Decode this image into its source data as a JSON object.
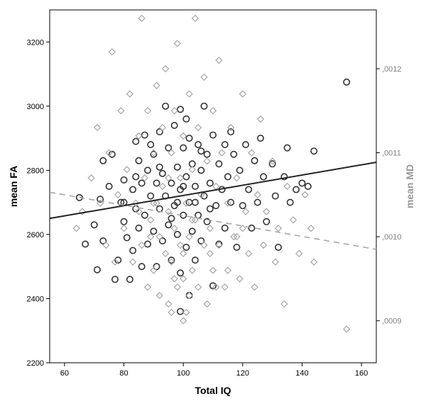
{
  "chart_data": {
    "type": "scatter",
    "title": "",
    "xlabel": "Total IQ",
    "ylabel_left": "mean FA",
    "ylabel_right": "mean MD",
    "xlim": [
      55,
      165
    ],
    "ylim_left": [
      2200,
      3300
    ],
    "ylim_right": [
      0.00085,
      0.00127
    ],
    "x_ticks": [
      "60",
      "80",
      "100",
      "120",
      "140",
      "160"
    ],
    "x_tick_values": [
      60,
      80,
      100,
      120,
      140,
      160
    ],
    "y_left_ticks": [
      "2200",
      "2400",
      "2600",
      "2800",
      "3000",
      "3200"
    ],
    "y_left_tick_values": [
      2200,
      2400,
      2600,
      2800,
      3000,
      3200
    ],
    "y_right_ticks": [
      ",0009",
      ",0010",
      ",0011",
      ",0012"
    ],
    "y_right_tick_values": [
      0.0009,
      0.001,
      0.0011,
      0.0012
    ],
    "grid": false,
    "colors": {
      "fa": "#333333",
      "md": "#a6a6a6",
      "fa_line": "#222222",
      "md_line": "#a6a6a6"
    },
    "series": [
      {
        "key": "fa",
        "marker": "circle",
        "axis": "left",
        "points": [
          [
            65,
            2715
          ],
          [
            67,
            2570
          ],
          [
            70,
            2630
          ],
          [
            71,
            2490
          ],
          [
            72,
            2710
          ],
          [
            73,
            2830
          ],
          [
            73,
            2580
          ],
          [
            75,
            2750
          ],
          [
            76,
            2850
          ],
          [
            77,
            2460
          ],
          [
            78,
            2520
          ],
          [
            79,
            2700
          ],
          [
            80,
            2770
          ],
          [
            80,
            2640
          ],
          [
            81,
            2590
          ],
          [
            82,
            2460
          ],
          [
            83,
            2740
          ],
          [
            83,
            2550
          ],
          [
            84,
            2890
          ],
          [
            84,
            2680
          ],
          [
            85,
            2830
          ],
          [
            85,
            2620
          ],
          [
            86,
            2760
          ],
          [
            86,
            2500
          ],
          [
            87,
            2910
          ],
          [
            87,
            2660
          ],
          [
            88,
            2800
          ],
          [
            88,
            2570
          ],
          [
            89,
            2720
          ],
          [
            90,
            2850
          ],
          [
            90,
            2610
          ],
          [
            91,
            2760
          ],
          [
            91,
            2500
          ],
          [
            92,
            2920
          ],
          [
            92,
            2680
          ],
          [
            93,
            2790
          ],
          [
            93,
            2580
          ],
          [
            94,
            3000
          ],
          [
            94,
            2720
          ],
          [
            95,
            2870
          ],
          [
            95,
            2630
          ],
          [
            96,
            2760
          ],
          [
            96,
            2520
          ],
          [
            97,
            2940
          ],
          [
            97,
            2690
          ],
          [
            98,
            2810
          ],
          [
            98,
            2600
          ],
          [
            99,
            2990
          ],
          [
            99,
            2740
          ],
          [
            99,
            2480
          ],
          [
            100,
            2870
          ],
          [
            100,
            2660
          ],
          [
            101,
            2960
          ],
          [
            101,
            2780
          ],
          [
            101,
            2560
          ],
          [
            102,
            2900
          ],
          [
            102,
            2700
          ],
          [
            103,
            2820
          ],
          [
            103,
            2610
          ],
          [
            104,
            2750
          ],
          [
            104,
            2520
          ],
          [
            105,
            2880
          ],
          [
            105,
            2660
          ],
          [
            106,
            2800
          ],
          [
            106,
            2580
          ],
          [
            107,
            3000
          ],
          [
            107,
            2720
          ],
          [
            108,
            2850
          ],
          [
            108,
            2640
          ],
          [
            109,
            2760
          ],
          [
            110,
            2910
          ],
          [
            110,
            2440
          ],
          [
            111,
            2690
          ],
          [
            112,
            2820
          ],
          [
            112,
            2570
          ],
          [
            113,
            2740
          ],
          [
            114,
            2880
          ],
          [
            114,
            2620
          ],
          [
            115,
            2780
          ],
          [
            116,
            2920
          ],
          [
            116,
            2700
          ],
          [
            117,
            2850
          ],
          [
            118,
            2560
          ],
          [
            119,
            2800
          ],
          [
            120,
            2690
          ],
          [
            121,
            2880
          ],
          [
            122,
            2740
          ],
          [
            123,
            2620
          ],
          [
            124,
            2830
          ],
          [
            125,
            2700
          ],
          [
            126,
            2900
          ],
          [
            127,
            2780
          ],
          [
            128,
            2640
          ],
          [
            130,
            2820
          ],
          [
            131,
            2720
          ],
          [
            132,
            2560
          ],
          [
            134,
            2780
          ],
          [
            135,
            2870
          ],
          [
            136,
            2700
          ],
          [
            138,
            2740
          ],
          [
            140,
            2760
          ],
          [
            142,
            2750
          ],
          [
            144,
            2860
          ],
          [
            155,
            3075
          ],
          [
            99,
            2360
          ],
          [
            102,
            2410
          ],
          [
            96,
            2650
          ],
          [
            98,
            2700
          ],
          [
            100,
            2750
          ],
          [
            104,
            2700
          ],
          [
            106,
            2860
          ],
          [
            109,
            2680
          ],
          [
            92,
            2810
          ],
          [
            89,
            2880
          ],
          [
            84,
            2780
          ],
          [
            80,
            2700
          ]
        ]
      },
      {
        "key": "md",
        "marker": "diamond",
        "axis": "right",
        "points": [
          [
            64,
            0.00101
          ],
          [
            66,
            0.00103
          ],
          [
            69,
            0.00107
          ],
          [
            71,
            0.00113
          ],
          [
            72,
            0.00104
          ],
          [
            74,
            0.00099
          ],
          [
            75,
            0.0011
          ],
          [
            76,
            0.00122
          ],
          [
            77,
            0.00097
          ],
          [
            78,
            0.00105
          ],
          [
            79,
            0.00115
          ],
          [
            80,
            0.00101
          ],
          [
            81,
            0.00108
          ],
          [
            82,
            0.00117
          ],
          [
            83,
            0.00097
          ],
          [
            84,
            0.00104
          ],
          [
            85,
            0.00112
          ],
          [
            86,
            0.00126
          ],
          [
            86,
            0.00099
          ],
          [
            87,
            0.00107
          ],
          [
            88,
            0.00094
          ],
          [
            88,
            0.00115
          ],
          [
            89,
            0.00102
          ],
          [
            90,
            0.0011
          ],
          [
            90,
            0.00096
          ],
          [
            91,
            0.00118
          ],
          [
            91,
            0.00104
          ],
          [
            92,
            0.001
          ],
          [
            92,
            0.00093
          ],
          [
            93,
            0.00113
          ],
          [
            93,
            0.00106
          ],
          [
            94,
            0.00098
          ],
          [
            94,
            0.0012
          ],
          [
            95,
            0.00103
          ],
          [
            95,
            0.00092
          ],
          [
            96,
            0.0011
          ],
          [
            96,
            0.00097
          ],
          [
            97,
            0.00115
          ],
          [
            97,
            0.00101
          ],
          [
            98,
            0.00123
          ],
          [
            98,
            0.00094
          ],
          [
            99,
            0.00107
          ],
          [
            99,
            0.00099
          ],
          [
            100,
            0.00112
          ],
          [
            100,
            0.00095
          ],
          [
            101,
            0.00104
          ],
          [
            101,
            0.00091
          ],
          [
            102,
            0.00117
          ],
          [
            102,
            0.001
          ],
          [
            103,
            0.00108
          ],
          [
            103,
            0.00096
          ],
          [
            104,
            0.00126
          ],
          [
            104,
            0.00102
          ],
          [
            105,
            0.00113
          ],
          [
            105,
            0.00094
          ],
          [
            106,
            0.00105
          ],
          [
            107,
            0.00099
          ],
          [
            107,
            0.00119
          ],
          [
            108,
            0.00092
          ],
          [
            108,
            0.00109
          ],
          [
            109,
            0.00101
          ],
          [
            110,
            0.00115
          ],
          [
            110,
            0.00096
          ],
          [
            111,
            0.00106
          ],
          [
            112,
            0.00121
          ],
          [
            112,
            0.00099
          ],
          [
            113,
            0.0011
          ],
          [
            114,
            0.00094
          ],
          [
            115,
            0.00104
          ],
          [
            116,
            0.00113
          ],
          [
            117,
            0.001
          ],
          [
            118,
            0.00107
          ],
          [
            119,
            0.00095
          ],
          [
            120,
            0.00117
          ],
          [
            121,
            0.00103
          ],
          [
            122,
            0.00098
          ],
          [
            123,
            0.0011
          ],
          [
            124,
            0.00094
          ],
          [
            125,
            0.00105
          ],
          [
            126,
            0.00114
          ],
          [
            127,
            0.00099
          ],
          [
            128,
            0.00103
          ],
          [
            130,
            0.00109
          ],
          [
            131,
            0.00097
          ],
          [
            132,
            0.00101
          ],
          [
            134,
            0.00092
          ],
          [
            135,
            0.00106
          ],
          [
            137,
            0.00102
          ],
          [
            139,
            0.00098
          ],
          [
            141,
            0.00105
          ],
          [
            143,
            0.00101
          ],
          [
            144,
            0.00097
          ],
          [
            155,
            0.00089
          ],
          [
            100,
            0.0009
          ],
          [
            102,
            0.00093
          ],
          [
            97,
            0.00095
          ],
          [
            96,
            0.00091
          ],
          [
            109,
            0.00098
          ],
          [
            111,
            0.00094
          ],
          [
            89,
            0.001
          ],
          [
            85,
            0.00103
          ],
          [
            118,
            0.001
          ],
          [
            95,
            0.00107
          ],
          [
            103,
            0.00102
          ],
          [
            100,
            0.00098
          ],
          [
            90,
            0.00104
          ],
          [
            115,
            0.00096
          ],
          [
            120,
            0.00101
          ]
        ]
      }
    ],
    "fit_lines": [
      {
        "key": "fa",
        "style": "solid",
        "axis": "left",
        "x": [
          55,
          165
        ],
        "y": [
          2650,
          2825
        ]
      },
      {
        "key": "md",
        "style": "dashed",
        "axis": "right",
        "x": [
          55,
          165
        ],
        "y": [
          0.001053,
          0.000985
        ]
      }
    ]
  }
}
